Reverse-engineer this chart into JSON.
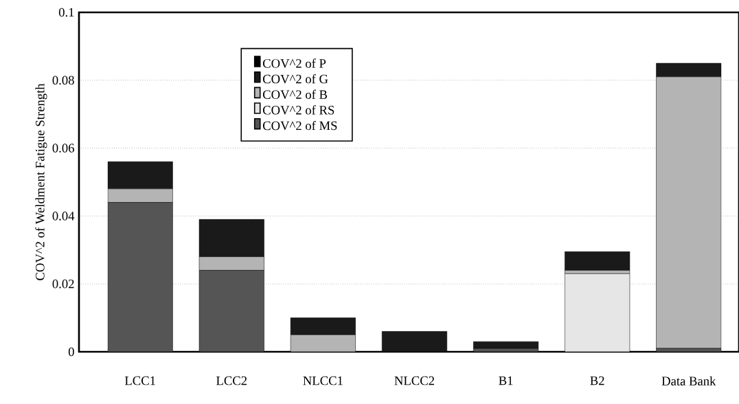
{
  "chart_data": {
    "type": "bar",
    "stacked": true,
    "ylabel": "COV^2 of Weldment Fatigue Strength",
    "categories": [
      "LCC1",
      "LCC2",
      "NLCC1",
      "NLCC2",
      "B1",
      "B2",
      "Data Bank"
    ],
    "series": [
      {
        "name": "COV^2 of MS",
        "color": "#555555",
        "values": [
          0.044,
          0.024,
          0,
          0,
          0.001,
          0,
          0.001
        ]
      },
      {
        "name": "COV^2 of RS",
        "color": "#e6e6e6",
        "values": [
          0,
          0,
          0,
          0,
          0,
          0.023,
          0
        ]
      },
      {
        "name": "COV^2 of B",
        "color": "#b4b4b4",
        "values": [
          0.004,
          0.004,
          0.005,
          0,
          0,
          0.001,
          0.08
        ]
      },
      {
        "name": "COV^2 of G",
        "color": "#1a1a1a",
        "values": [
          0.008,
          0.011,
          0.005,
          0.006,
          0.002,
          0.0055,
          0.004
        ]
      },
      {
        "name": "COV^2 of P",
        "color": "#000000",
        "values": [
          0,
          0,
          0,
          0,
          0,
          0,
          0
        ]
      }
    ],
    "ylim": [
      0,
      0.1
    ],
    "yticks": [
      0,
      0.02,
      0.04,
      0.06,
      0.08,
      0.1
    ],
    "grid": "y",
    "legend": "top"
  }
}
